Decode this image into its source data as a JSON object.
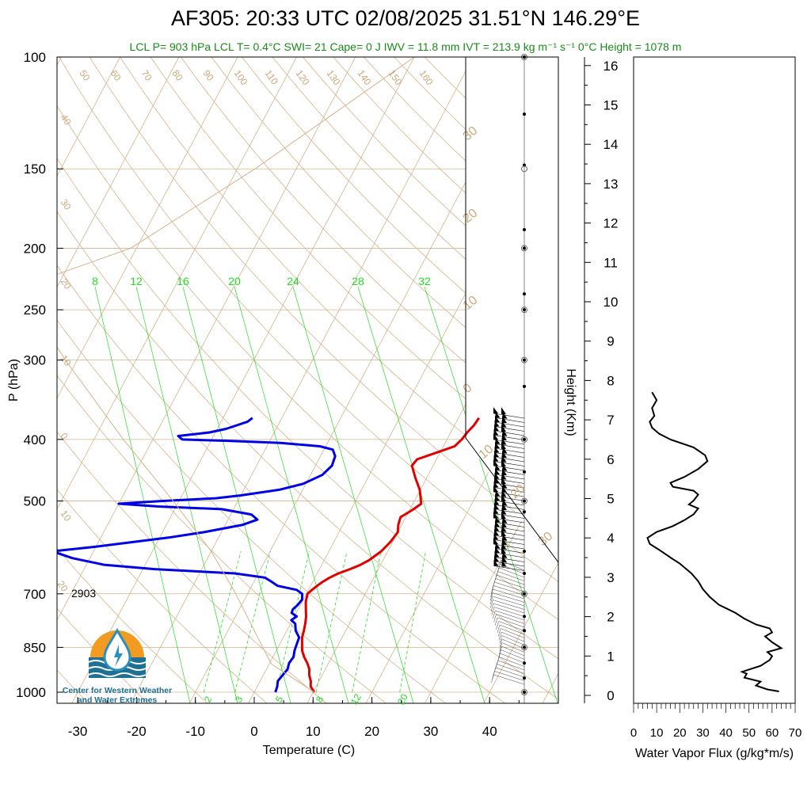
{
  "title": "AF305: 20:33 UTC 02/08/2025  31.51°N 146.29°E",
  "subtitle": "LCL P= 903 hPa  LCL T= 0.4°C  SWI= 21  Cape= 0 J  IWV = 11.8 mm  IVT = 213.9 kg m⁻¹ s⁻¹  0°C Height = 1078 m",
  "station_label": "2903",
  "logo": {
    "line1": "Center for Western Weather",
    "line2": "and Water Extremes",
    "colors": {
      "sun": "#f39a21",
      "water": "#1e7094",
      "drop": "#2a8fbd"
    }
  },
  "colors": {
    "temperature": "#e00000",
    "dewpoint": "#0000e6",
    "isotherm": "#d2b48c",
    "mixing_ratio": "#22dd22",
    "subtitle": "#1a8a1a"
  },
  "chart_data": [
    {
      "type": "line",
      "subtype": "skew-t log-p",
      "xlabel": "Temperature (C)",
      "ylabel": "P (hPa)",
      "xlim": [
        -34,
        52
      ],
      "ylim": [
        1000,
        100
      ],
      "yscale": "log",
      "x_ticks": [
        -30,
        -20,
        -10,
        0,
        10,
        20,
        30,
        40
      ],
      "y_ticks": [
        100,
        150,
        200,
        250,
        300,
        400,
        500,
        700,
        850,
        1000
      ],
      "height_ticks_km": [
        0,
        1,
        2,
        3,
        4,
        5,
        6,
        7,
        8,
        9,
        10,
        11,
        12,
        13,
        14,
        15,
        16
      ],
      "height_axis_label": "Height (Km)",
      "isotherm_labels": [
        "50",
        "60",
        "70",
        "80",
        "90",
        "100",
        "110",
        "120",
        "130",
        "140",
        "150",
        "160",
        "40",
        "30",
        "20",
        "10",
        "0",
        "10",
        "20"
      ],
      "mixing_ratio_top_labels": [
        "8",
        "12",
        "16",
        "20",
        "24",
        "28",
        "32"
      ],
      "mixing_ratio_bottom_labels": [
        "2",
        "3",
        "5",
        "8",
        "12",
        "20"
      ],
      "adiabat_right_labels": [
        "30",
        "20",
        "10",
        "0",
        "10",
        "20",
        "30"
      ],
      "series": [
        {
          "name": "Temperature",
          "color": "#e00000",
          "points": [
            [
              1000,
              10.2
            ],
            [
              980,
              9.1
            ],
            [
              960,
              8.6
            ],
            [
              940,
              7.8
            ],
            [
              920,
              7.3
            ],
            [
              900,
              6.4
            ],
            [
              880,
              5.3
            ],
            [
              860,
              4.4
            ],
            [
              840,
              3.8
            ],
            [
              820,
              3.2
            ],
            [
              800,
              2.9
            ],
            [
              780,
              2.5
            ],
            [
              760,
              2.0
            ],
            [
              740,
              1.3
            ],
            [
              720,
              0.6
            ],
            [
              700,
              0.2
            ],
            [
              690,
              0.6
            ],
            [
              680,
              1.1
            ],
            [
              670,
              1.7
            ],
            [
              660,
              2.5
            ],
            [
              650,
              3.6
            ],
            [
              640,
              5.2
            ],
            [
              630,
              6.6
            ],
            [
              620,
              7.6
            ],
            [
              600,
              8.9
            ],
            [
              580,
              9.6
            ],
            [
              560,
              10.0
            ],
            [
              545,
              9.4
            ],
            [
              530,
              9.1
            ],
            [
              515,
              10.6
            ],
            [
              505,
              11.4
            ],
            [
              495,
              10.8
            ],
            [
              480,
              9.9
            ],
            [
              460,
              8.1
            ],
            [
              440,
              6.4
            ],
            [
              430,
              6.7
            ],
            [
              420,
              9.3
            ],
            [
              410,
              11.9
            ],
            [
              400,
              12.5
            ],
            [
              390,
              12.8
            ],
            [
              380,
              13.3
            ],
            [
              370,
              13.5
            ]
          ]
        },
        {
          "name": "Dewpoint",
          "color": "#0000e6",
          "points": [
            [
              1000,
              3.6
            ],
            [
              980,
              3.4
            ],
            [
              960,
              3.0
            ],
            [
              940,
              3.3
            ],
            [
              920,
              3.6
            ],
            [
              900,
              3.3
            ],
            [
              880,
              3.5
            ],
            [
              860,
              3.1
            ],
            [
              840,
              2.9
            ],
            [
              820,
              2.7
            ],
            [
              800,
              1.5
            ],
            [
              780,
              0.8
            ],
            [
              770,
              -0.2
            ],
            [
              760,
              0.4
            ],
            [
              750,
              -0.8
            ],
            [
              740,
              -0.9
            ],
            [
              730,
              -0.5
            ],
            [
              715,
              -0.2
            ],
            [
              700,
              -0.7
            ],
            [
              690,
              -2.0
            ],
            [
              680,
              -5.6
            ],
            [
              670,
              -7.0
            ],
            [
              660,
              -8.5
            ],
            [
              650,
              -14.0
            ],
            [
              640,
              -28.0
            ],
            [
              630,
              -37.0
            ],
            [
              615,
              -43.0
            ],
            [
              600,
              -47.0
            ],
            [
              590,
              -40.0
            ],
            [
              580,
              -34.0
            ],
            [
              570,
              -28.0
            ],
            [
              560,
              -23.0
            ],
            [
              545,
              -17.0
            ],
            [
              535,
              -15.0
            ],
            [
              525,
              -16.5
            ],
            [
              515,
              -22.0
            ],
            [
              510,
              -33.0
            ],
            [
              505,
              -40.0
            ],
            [
              500,
              -33.0
            ],
            [
              495,
              -24.0
            ],
            [
              490,
              -20.0
            ],
            [
              480,
              -14.0
            ],
            [
              470,
              -10.5
            ],
            [
              455,
              -8.0
            ],
            [
              440,
              -7.2
            ],
            [
              425,
              -7.5
            ],
            [
              415,
              -8.5
            ],
            [
              410,
              -11.0
            ],
            [
              405,
              -18.0
            ],
            [
              402,
              -27.0
            ],
            [
              400,
              -35.0
            ],
            [
              395,
              -36.0
            ],
            [
              390,
              -31.0
            ],
            [
              385,
              -28.5
            ],
            [
              380,
              -27.0
            ],
            [
              375,
              -25.5
            ],
            [
              370,
              -25.0
            ]
          ]
        },
        {
          "name": "Parcel",
          "color": "#d2b48c",
          "points": [
            [
              1000,
              10.2
            ],
            [
              903,
              0.4
            ],
            [
              850,
              -2.6
            ],
            [
              700,
              -12.0
            ],
            [
              600,
              -20.0
            ],
            [
              500,
              -31.0
            ],
            [
              400,
              -45.0
            ],
            [
              300,
              -62.0
            ],
            [
              250,
              -72.0
            ],
            [
              230,
              -76.0
            ],
            [
              200,
              -61.0
            ],
            [
              150,
              -47.0
            ],
            [
              100,
              -30.0
            ]
          ]
        }
      ]
    },
    {
      "type": "line",
      "subtype": "water-vapor-flux-profile",
      "xlabel": "Water Vapor Flux (g/kg*m/s)",
      "xlim": [
        0,
        70
      ],
      "x_ticks": [
        0,
        10,
        20,
        30,
        40,
        50,
        60,
        70
      ],
      "ylim_km": [
        0,
        16.5
      ],
      "series": [
        {
          "name": "Water Vapor Flux",
          "color": "#000000",
          "points": [
            [
              0.1,
              63
            ],
            [
              0.15,
              58
            ],
            [
              0.25,
              53
            ],
            [
              0.35,
              55
            ],
            [
              0.45,
              48
            ],
            [
              0.55,
              49
            ],
            [
              0.6,
              47
            ],
            [
              0.75,
              55
            ],
            [
              0.9,
              59
            ],
            [
              1.0,
              60
            ],
            [
              1.1,
              58
            ],
            [
              1.2,
              64
            ],
            [
              1.35,
              60
            ],
            [
              1.5,
              57
            ],
            [
              1.6,
              60
            ],
            [
              1.7,
              59
            ],
            [
              1.8,
              53
            ],
            [
              1.95,
              48
            ],
            [
              2.1,
              44
            ],
            [
              2.3,
              37
            ],
            [
              2.5,
              33
            ],
            [
              2.7,
              30
            ],
            [
              2.9,
              28
            ],
            [
              3.1,
              25
            ],
            [
              3.25,
              22
            ],
            [
              3.35,
              20
            ],
            [
              3.5,
              16
            ],
            [
              3.7,
              11
            ],
            [
              3.85,
              7
            ],
            [
              4.0,
              6
            ],
            [
              4.15,
              10
            ],
            [
              4.3,
              17
            ],
            [
              4.45,
              22
            ],
            [
              4.6,
              26
            ],
            [
              4.75,
              28
            ],
            [
              4.85,
              24
            ],
            [
              4.95,
              26
            ],
            [
              5.1,
              28
            ],
            [
              5.2,
              26
            ],
            [
              5.3,
              17
            ],
            [
              5.4,
              16
            ],
            [
              5.55,
              22
            ],
            [
              5.75,
              28
            ],
            [
              5.95,
              32
            ],
            [
              6.1,
              31
            ],
            [
              6.3,
              26
            ],
            [
              6.5,
              16
            ],
            [
              6.65,
              11
            ],
            [
              6.8,
              8
            ],
            [
              6.95,
              7
            ],
            [
              7.1,
              9
            ],
            [
              7.3,
              8
            ],
            [
              7.5,
              10
            ],
            [
              7.6,
              9
            ],
            [
              7.7,
              8
            ]
          ]
        }
      ]
    }
  ]
}
